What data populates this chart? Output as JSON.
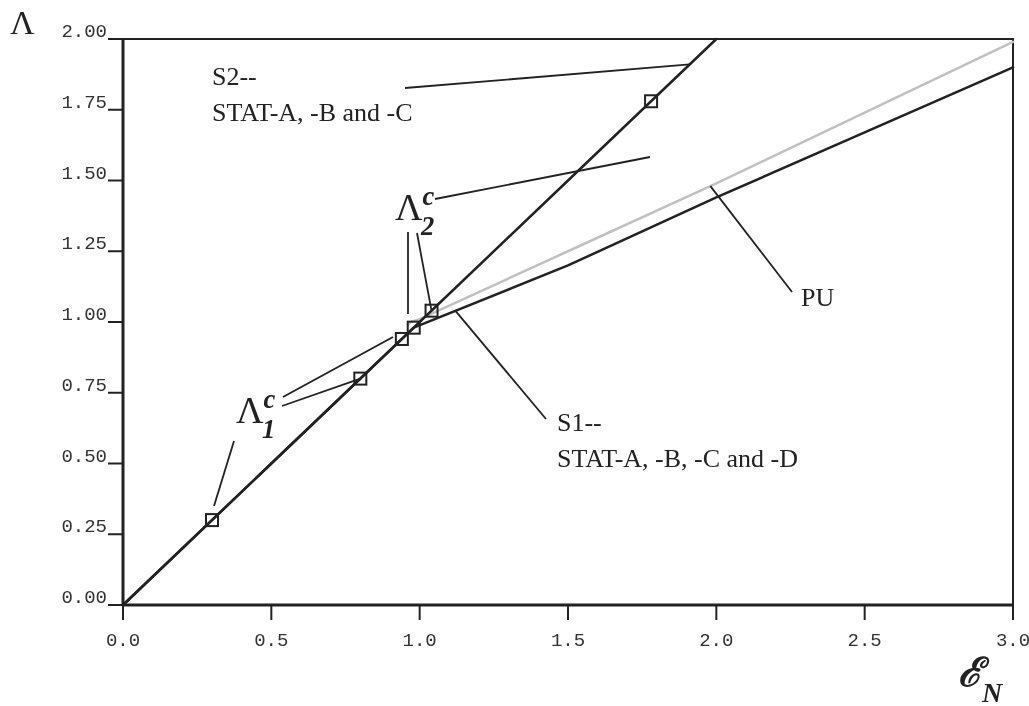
{
  "chart_data": {
    "type": "line",
    "xlabel": "ℰ$_{N}$",
    "ylabel": "Λ",
    "xlim": [
      0,
      3
    ],
    "ylim": [
      0,
      2
    ],
    "xticks": [
      {
        "value": 0,
        "label": "0.0"
      },
      0.5,
      {
        "value": 1,
        "label": "1.0"
      },
      1.5,
      {
        "value": 2,
        "label": "2.0"
      },
      2.5,
      {
        "value": 3,
        "label": "3.0"
      }
    ],
    "yticks": [
      {
        "value": 0,
        "label": "0.00"
      },
      0.25,
      {
        "value": 0.5,
        "label": "0.50"
      },
      0.75,
      {
        "value": 1,
        "label": "1.00"
      },
      1.25,
      {
        "value": 1.5,
        "label": "1.50"
      },
      1.75,
      {
        "value": 2,
        "label": "2.00"
      }
    ],
    "grid": false,
    "line_style": "solid",
    "series": [
      {
        "color": "#c0c0c0",
        "x": [
          0.96,
          0.97,
          1.0,
          1.5,
          2.0,
          2.5,
          3.0
        ],
        "values": [
          0.99,
          1.0,
          1.01,
          1.25,
          1.49,
          1.74,
          1.99
        ]
      },
      {
        "color": "#222222",
        "x": [
          0,
          0.5,
          0.98,
          1.5,
          2.0,
          2.5,
          3.0
        ],
        "values": [
          0,
          0.5,
          0.98,
          1.2,
          1.44,
          1.67,
          1.9
        ]
      },
      {
        "color": "#222222",
        "x": [
          0,
          0.5,
          1.0,
          1.5,
          2.0
        ],
        "values": [
          0,
          0.5,
          1.0,
          1.5,
          2.0
        ]
      },
      {
        "type": "scatter",
        "marker": "square",
        "color": "#222222",
        "x": [
          0.3,
          0.8,
          0.94,
          0.98,
          1.04,
          1.78
        ],
        "values": [
          0.3,
          0.8,
          0.94,
          0.98,
          1.04,
          1.78
        ]
      }
    ],
    "annotations": [
      {
        "text": "S2--\nSTAT-A, -B and -C",
        "x": 1.91,
        "y": 1.91
      },
      {
        "text": "Λ$^{c}$$_{2}$",
        "x": 1.04,
        "y": 1.04
      },
      {
        "text": "Λ$^{c}$$_{1}$",
        "x": 0.8,
        "y": 0.8
      },
      {
        "text": "S1--\nSTAT-A, -B, -C and -D",
        "x": 1.12,
        "y": 1.04
      },
      {
        "text": "PU",
        "x": 1.98,
        "y": 1.48
      }
    ]
  }
}
